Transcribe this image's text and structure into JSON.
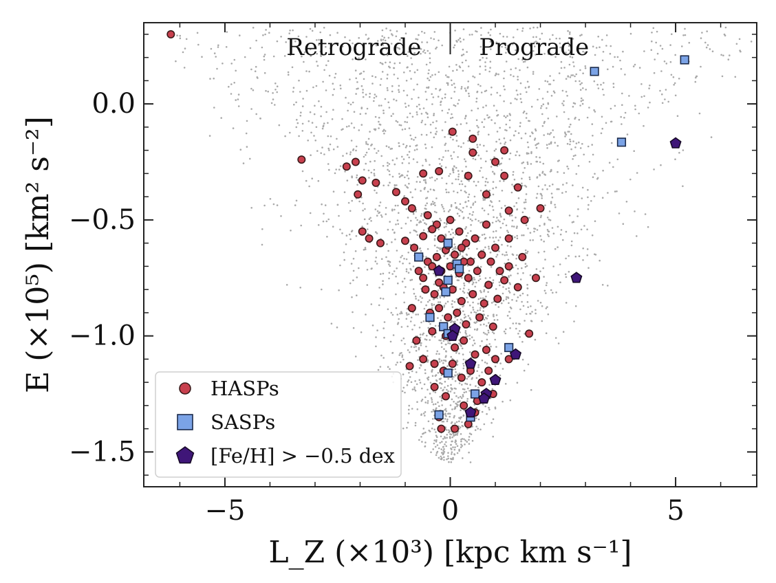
{
  "chart_data": {
    "type": "scatter",
    "xlabel": "L_Z (×10³) [kpc km s⁻¹]",
    "ylabel": "E (×10⁵) [km² s⁻²]",
    "xlim": [
      -6.8,
      6.8
    ],
    "ylim": [
      -1.65,
      0.35
    ],
    "x_ticks": [
      -5,
      0,
      5
    ],
    "x_tick_labels": [
      "−5",
      "0",
      "5"
    ],
    "y_ticks": [
      0.0,
      -0.5,
      -1.0,
      -1.5
    ],
    "y_tick_labels": [
      "0.0",
      "−0.5",
      "−1.0",
      "−1.5"
    ],
    "grid": false,
    "legend_position": "bottom-left",
    "annotations": {
      "left": "Retrograde",
      "right": "Prograde",
      "divider_x": 0
    },
    "background_population": {
      "color": "#a9a9a9",
      "count": 3000,
      "description_visible": false
    },
    "series": [
      {
        "name": "HASPs",
        "marker": "circle",
        "color": "#c8404e",
        "points": [
          [
            -6.2,
            0.3
          ],
          [
            -3.3,
            -0.24
          ],
          [
            -2.3,
            -0.27
          ],
          [
            -2.1,
            -0.25
          ],
          [
            -1.95,
            -0.33
          ],
          [
            -2.05,
            -0.39
          ],
          [
            -1.65,
            -0.34
          ],
          [
            -1.2,
            -0.38
          ],
          [
            -1.0,
            -0.42
          ],
          [
            -0.85,
            -0.45
          ],
          [
            -0.6,
            -0.3
          ],
          [
            -0.25,
            -0.29
          ],
          [
            -0.5,
            -0.48
          ],
          [
            -0.3,
            -0.52
          ],
          [
            0.05,
            -0.12
          ],
          [
            0.5,
            -0.15
          ],
          [
            0.5,
            -0.21
          ],
          [
            1.2,
            -0.2
          ],
          [
            1.0,
            -0.25
          ],
          [
            0.4,
            -0.31
          ],
          [
            1.2,
            -0.31
          ],
          [
            1.5,
            -0.36
          ],
          [
            0.8,
            -0.39
          ],
          [
            2.0,
            -0.45
          ],
          [
            1.65,
            -0.5
          ],
          [
            1.3,
            -0.46
          ],
          [
            -1.8,
            -0.58
          ],
          [
            -1.55,
            -0.6
          ],
          [
            -1.95,
            -0.55
          ],
          [
            -1.0,
            -0.59
          ],
          [
            -0.8,
            -0.62
          ],
          [
            -0.6,
            -0.57
          ],
          [
            -0.4,
            -0.54
          ],
          [
            -0.2,
            -0.58
          ],
          [
            0.0,
            -0.5
          ],
          [
            0.2,
            -0.55
          ],
          [
            0.35,
            -0.6
          ],
          [
            0.55,
            -0.58
          ],
          [
            0.8,
            -0.52
          ],
          [
            1.0,
            -0.62
          ],
          [
            1.3,
            -0.58
          ],
          [
            1.6,
            -0.66
          ],
          [
            1.3,
            -0.7
          ],
          [
            1.1,
            -0.72
          ],
          [
            0.9,
            -0.68
          ],
          [
            0.7,
            -0.65
          ],
          [
            0.45,
            -0.68
          ],
          [
            0.25,
            -0.62
          ],
          [
            0.1,
            -0.65
          ],
          [
            -0.1,
            -0.63
          ],
          [
            -0.3,
            -0.66
          ],
          [
            -0.5,
            -0.68
          ],
          [
            -0.7,
            -0.72
          ],
          [
            -0.6,
            -0.75
          ],
          [
            -0.4,
            -0.7
          ],
          [
            -0.2,
            -0.72
          ],
          [
            0.0,
            -0.7
          ],
          [
            0.2,
            -0.73
          ],
          [
            0.4,
            -0.75
          ],
          [
            0.6,
            -0.72
          ],
          [
            0.85,
            -0.78
          ],
          [
            1.2,
            -0.76
          ],
          [
            1.5,
            -0.79
          ],
          [
            1.9,
            -0.75
          ],
          [
            -0.55,
            -0.8
          ],
          [
            -0.35,
            -0.82
          ],
          [
            -0.15,
            -0.79
          ],
          [
            0.05,
            -0.8
          ],
          [
            0.25,
            -0.85
          ],
          [
            0.5,
            -0.82
          ],
          [
            0.75,
            -0.86
          ],
          [
            1.05,
            -0.84
          ],
          [
            -0.85,
            -0.88
          ],
          [
            -0.45,
            -0.9
          ],
          [
            -0.25,
            -0.88
          ],
          [
            -0.05,
            -0.92
          ],
          [
            0.15,
            -0.9
          ],
          [
            0.35,
            -0.95
          ],
          [
            0.65,
            -0.92
          ],
          [
            0.95,
            -0.96
          ],
          [
            -0.75,
            -1.02
          ],
          [
            -0.4,
            -0.98
          ],
          [
            -0.1,
            -1.0
          ],
          [
            0.1,
            -1.05
          ],
          [
            0.3,
            -1.02
          ],
          [
            0.55,
            -1.08
          ],
          [
            0.8,
            -1.06
          ],
          [
            1.3,
            -1.1
          ],
          [
            1.75,
            -0.99
          ],
          [
            -0.6,
            -1.1
          ],
          [
            -0.35,
            -1.12
          ],
          [
            -0.15,
            -1.15
          ],
          [
            0.05,
            -1.12
          ],
          [
            0.25,
            -1.18
          ],
          [
            0.45,
            -1.15
          ],
          [
            0.7,
            -1.2
          ],
          [
            0.95,
            -1.25
          ],
          [
            0.6,
            -1.28
          ],
          [
            0.3,
            -1.3
          ],
          [
            -0.1,
            -1.26
          ],
          [
            -0.35,
            -1.22
          ],
          [
            -0.25,
            -1.35
          ],
          [
            0.1,
            -1.4
          ],
          [
            -0.2,
            -1.4
          ],
          [
            0.55,
            -1.33
          ],
          [
            0.4,
            -1.38
          ],
          [
            1.0,
            -1.1
          ],
          [
            0.85,
            -1.15
          ],
          [
            -0.9,
            -1.13
          ],
          [
            -0.05,
            -0.61
          ],
          [
            0.3,
            -0.68
          ],
          [
            -0.25,
            -0.77
          ]
        ]
      },
      {
        "name": "SASPs",
        "marker": "square",
        "color": "#7ba3e6",
        "points": [
          [
            5.2,
            0.19
          ],
          [
            3.2,
            0.14
          ],
          [
            3.8,
            -0.165
          ],
          [
            -0.7,
            -0.66
          ],
          [
            -0.05,
            -0.6
          ],
          [
            0.15,
            -0.69
          ],
          [
            0.2,
            -0.71
          ],
          [
            -0.05,
            -0.76
          ],
          [
            -0.1,
            -0.81
          ],
          [
            -0.45,
            -0.92
          ],
          [
            -0.15,
            -0.96
          ],
          [
            -0.05,
            -0.99
          ],
          [
            -0.05,
            -1.16
          ],
          [
            1.3,
            -1.05
          ],
          [
            0.55,
            -1.25
          ],
          [
            0.45,
            -1.35
          ],
          [
            -0.25,
            -1.34
          ]
        ]
      },
      {
        "name": "[Fe/H] > −0.5 dex",
        "marker": "pentagon",
        "color": "#3f1678",
        "points": [
          [
            5.0,
            -0.17
          ],
          [
            2.8,
            -0.75
          ],
          [
            1.45,
            -1.08
          ],
          [
            0.45,
            -1.12
          ],
          [
            0.1,
            -0.97
          ],
          [
            0.05,
            -1.0
          ],
          [
            1.0,
            -1.19
          ],
          [
            0.8,
            -1.25
          ],
          [
            0.75,
            -1.27
          ],
          [
            0.45,
            -1.33
          ],
          [
            -0.25,
            -0.72
          ]
        ]
      }
    ]
  }
}
